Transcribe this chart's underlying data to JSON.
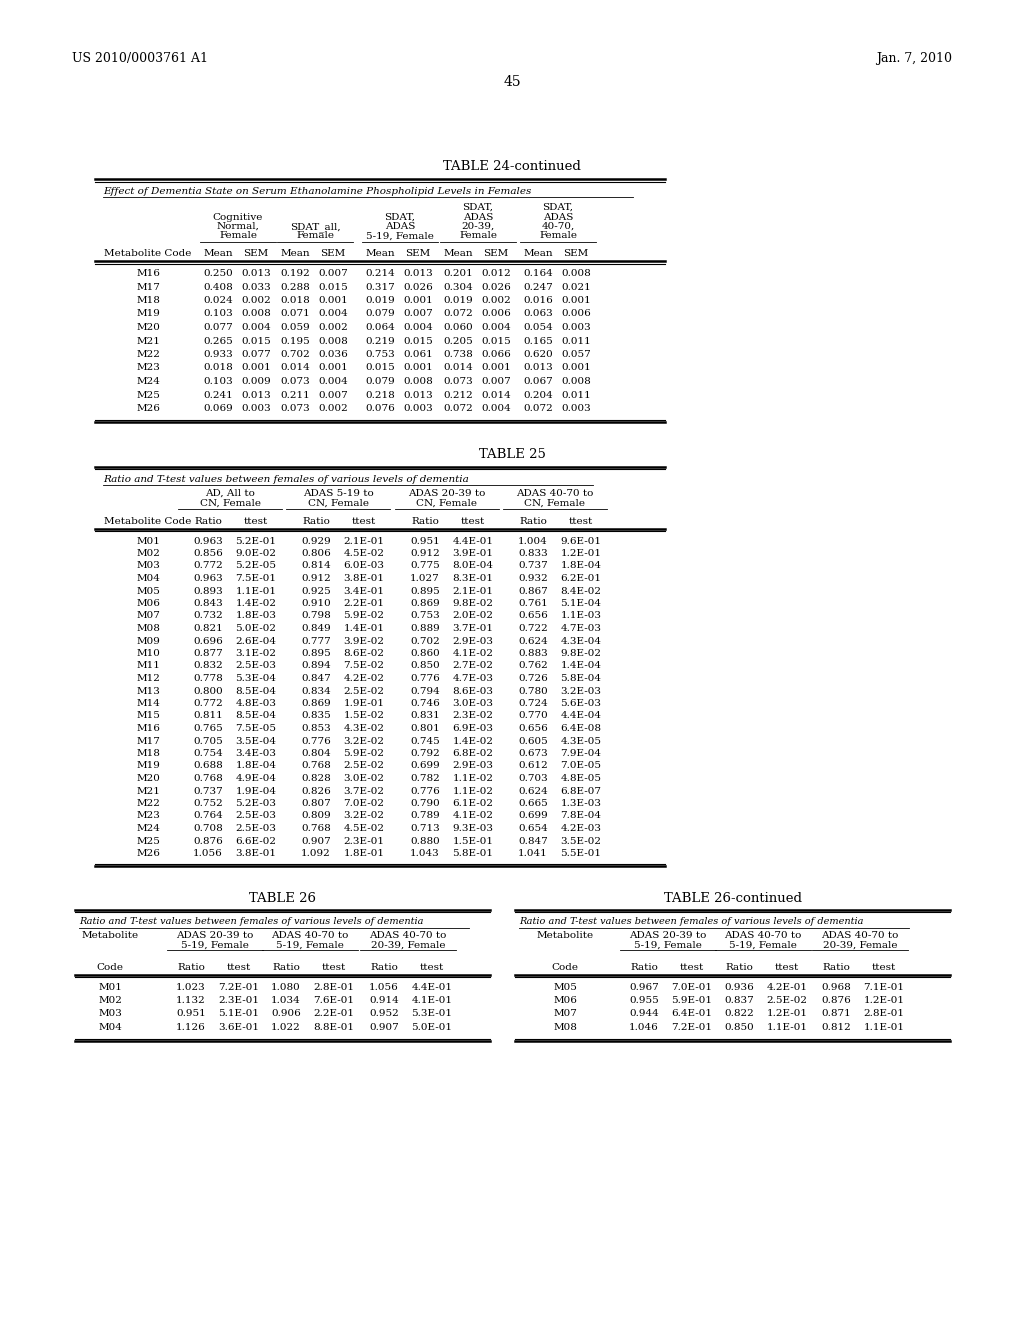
{
  "header_left": "US 2010/0003761 A1",
  "header_right": "Jan. 7, 2010",
  "page_number": "45",
  "table24_title": "TABLE 24-continued",
  "table24_subtitle": "Effect of Dementia State on Serum Ethanolamine Phospholipid Levels in Females",
  "table24_data": [
    [
      "M16",
      "0.250",
      "0.013",
      "0.192",
      "0.007",
      "0.214",
      "0.013",
      "0.201",
      "0.012",
      "0.164",
      "0.008"
    ],
    [
      "M17",
      "0.408",
      "0.033",
      "0.288",
      "0.015",
      "0.317",
      "0.026",
      "0.304",
      "0.026",
      "0.247",
      "0.021"
    ],
    [
      "M18",
      "0.024",
      "0.002",
      "0.018",
      "0.001",
      "0.019",
      "0.001",
      "0.019",
      "0.002",
      "0.016",
      "0.001"
    ],
    [
      "M19",
      "0.103",
      "0.008",
      "0.071",
      "0.004",
      "0.079",
      "0.007",
      "0.072",
      "0.006",
      "0.063",
      "0.006"
    ],
    [
      "M20",
      "0.077",
      "0.004",
      "0.059",
      "0.002",
      "0.064",
      "0.004",
      "0.060",
      "0.004",
      "0.054",
      "0.003"
    ],
    [
      "M21",
      "0.265",
      "0.015",
      "0.195",
      "0.008",
      "0.219",
      "0.015",
      "0.205",
      "0.015",
      "0.165",
      "0.011"
    ],
    [
      "M22",
      "0.933",
      "0.077",
      "0.702",
      "0.036",
      "0.753",
      "0.061",
      "0.738",
      "0.066",
      "0.620",
      "0.057"
    ],
    [
      "M23",
      "0.018",
      "0.001",
      "0.014",
      "0.001",
      "0.015",
      "0.001",
      "0.014",
      "0.001",
      "0.013",
      "0.001"
    ],
    [
      "M24",
      "0.103",
      "0.009",
      "0.073",
      "0.004",
      "0.079",
      "0.008",
      "0.073",
      "0.007",
      "0.067",
      "0.008"
    ],
    [
      "M25",
      "0.241",
      "0.013",
      "0.211",
      "0.007",
      "0.218",
      "0.013",
      "0.212",
      "0.014",
      "0.204",
      "0.011"
    ],
    [
      "M26",
      "0.069",
      "0.003",
      "0.073",
      "0.002",
      "0.076",
      "0.003",
      "0.072",
      "0.004",
      "0.072",
      "0.003"
    ]
  ],
  "table25_title": "TABLE 25",
  "table25_subtitle": "Ratio and T-test values between females of various levels of dementia",
  "table25_data": [
    [
      "M01",
      "0.963",
      "5.2E-01",
      "0.929",
      "2.1E-01",
      "0.951",
      "4.4E-01",
      "1.004",
      "9.6E-01"
    ],
    [
      "M02",
      "0.856",
      "9.0E-02",
      "0.806",
      "4.5E-02",
      "0.912",
      "3.9E-01",
      "0.833",
      "1.2E-01"
    ],
    [
      "M03",
      "0.772",
      "5.2E-05",
      "0.814",
      "6.0E-03",
      "0.775",
      "8.0E-04",
      "0.737",
      "1.8E-04"
    ],
    [
      "M04",
      "0.963",
      "7.5E-01",
      "0.912",
      "3.8E-01",
      "1.027",
      "8.3E-01",
      "0.932",
      "6.2E-01"
    ],
    [
      "M05",
      "0.893",
      "1.1E-01",
      "0.925",
      "3.4E-01",
      "0.895",
      "2.1E-01",
      "0.867",
      "8.4E-02"
    ],
    [
      "M06",
      "0.843",
      "1.4E-02",
      "0.910",
      "2.2E-01",
      "0.869",
      "9.8E-02",
      "0.761",
      "5.1E-04"
    ],
    [
      "M07",
      "0.732",
      "1.8E-03",
      "0.798",
      "5.9E-02",
      "0.753",
      "2.0E-02",
      "0.656",
      "1.1E-03"
    ],
    [
      "M08",
      "0.821",
      "5.0E-02",
      "0.849",
      "1.4E-01",
      "0.889",
      "3.7E-01",
      "0.722",
      "4.7E-03"
    ],
    [
      "M09",
      "0.696",
      "2.6E-04",
      "0.777",
      "3.9E-02",
      "0.702",
      "2.9E-03",
      "0.624",
      "4.3E-04"
    ],
    [
      "M10",
      "0.877",
      "3.1E-02",
      "0.895",
      "8.6E-02",
      "0.860",
      "4.1E-02",
      "0.883",
      "9.8E-02"
    ],
    [
      "M11",
      "0.832",
      "2.5E-03",
      "0.894",
      "7.5E-02",
      "0.850",
      "2.7E-02",
      "0.762",
      "1.4E-04"
    ],
    [
      "M12",
      "0.778",
      "5.3E-04",
      "0.847",
      "4.2E-02",
      "0.776",
      "4.7E-03",
      "0.726",
      "5.8E-04"
    ],
    [
      "M13",
      "0.800",
      "8.5E-04",
      "0.834",
      "2.5E-02",
      "0.794",
      "8.6E-03",
      "0.780",
      "3.2E-03"
    ],
    [
      "M14",
      "0.772",
      "4.8E-03",
      "0.869",
      "1.9E-01",
      "0.746",
      "3.0E-03",
      "0.724",
      "5.6E-03"
    ],
    [
      "M15",
      "0.811",
      "8.5E-04",
      "0.835",
      "1.5E-02",
      "0.831",
      "2.3E-02",
      "0.770",
      "4.4E-04"
    ],
    [
      "M16",
      "0.765",
      "7.5E-05",
      "0.853",
      "4.3E-02",
      "0.801",
      "6.9E-03",
      "0.656",
      "6.4E-08"
    ],
    [
      "M17",
      "0.705",
      "3.5E-04",
      "0.776",
      "3.2E-02",
      "0.745",
      "1.4E-02",
      "0.605",
      "4.3E-05"
    ],
    [
      "M18",
      "0.754",
      "3.4E-03",
      "0.804",
      "5.9E-02",
      "0.792",
      "6.8E-02",
      "0.673",
      "7.9E-04"
    ],
    [
      "M19",
      "0.688",
      "1.8E-04",
      "0.768",
      "2.5E-02",
      "0.699",
      "2.9E-03",
      "0.612",
      "7.0E-05"
    ],
    [
      "M20",
      "0.768",
      "4.9E-04",
      "0.828",
      "3.0E-02",
      "0.782",
      "1.1E-02",
      "0.703",
      "4.8E-05"
    ],
    [
      "M21",
      "0.737",
      "1.9E-04",
      "0.826",
      "3.7E-02",
      "0.776",
      "1.1E-02",
      "0.624",
      "6.8E-07"
    ],
    [
      "M22",
      "0.752",
      "5.2E-03",
      "0.807",
      "7.0E-02",
      "0.790",
      "6.1E-02",
      "0.665",
      "1.3E-03"
    ],
    [
      "M23",
      "0.764",
      "2.5E-03",
      "0.809",
      "3.2E-02",
      "0.789",
      "4.1E-02",
      "0.699",
      "7.8E-04"
    ],
    [
      "M24",
      "0.708",
      "2.5E-03",
      "0.768",
      "4.5E-02",
      "0.713",
      "9.3E-03",
      "0.654",
      "4.2E-03"
    ],
    [
      "M25",
      "0.876",
      "6.6E-02",
      "0.907",
      "2.3E-01",
      "0.880",
      "1.5E-01",
      "0.847",
      "3.5E-02"
    ],
    [
      "M26",
      "1.056",
      "3.8E-01",
      "1.092",
      "1.8E-01",
      "1.043",
      "5.8E-01",
      "1.041",
      "5.5E-01"
    ]
  ],
  "table26_title": "TABLE 26",
  "table26_cont_title": "TABLE 26-continued",
  "table26_subtitle": "Ratio and T-test values between females of various levels of dementia",
  "table26_left_data": [
    [
      "M01",
      "1.023",
      "7.2E-01",
      "1.080",
      "2.8E-01",
      "1.056",
      "4.4E-01"
    ],
    [
      "M02",
      "1.132",
      "2.3E-01",
      "1.034",
      "7.6E-01",
      "0.914",
      "4.1E-01"
    ],
    [
      "M03",
      "0.951",
      "5.1E-01",
      "0.906",
      "2.2E-01",
      "0.952",
      "5.3E-01"
    ],
    [
      "M04",
      "1.126",
      "3.6E-01",
      "1.022",
      "8.8E-01",
      "0.907",
      "5.0E-01"
    ]
  ],
  "table26_right_data": [
    [
      "M05",
      "0.967",
      "7.0E-01",
      "0.936",
      "4.2E-01",
      "0.968",
      "7.1E-01"
    ],
    [
      "M06",
      "0.955",
      "5.9E-01",
      "0.837",
      "2.5E-02",
      "0.876",
      "1.2E-01"
    ],
    [
      "M07",
      "0.944",
      "6.4E-01",
      "0.822",
      "1.2E-01",
      "0.871",
      "2.8E-01"
    ],
    [
      "M08",
      "1.046",
      "7.2E-01",
      "0.850",
      "1.1E-01",
      "0.812",
      "1.1E-01"
    ]
  ],
  "bg_color": "#ffffff",
  "text_color": "#000000",
  "fs_body": 8.0,
  "fs_title": 9.5,
  "fs_header_page": 9.0
}
